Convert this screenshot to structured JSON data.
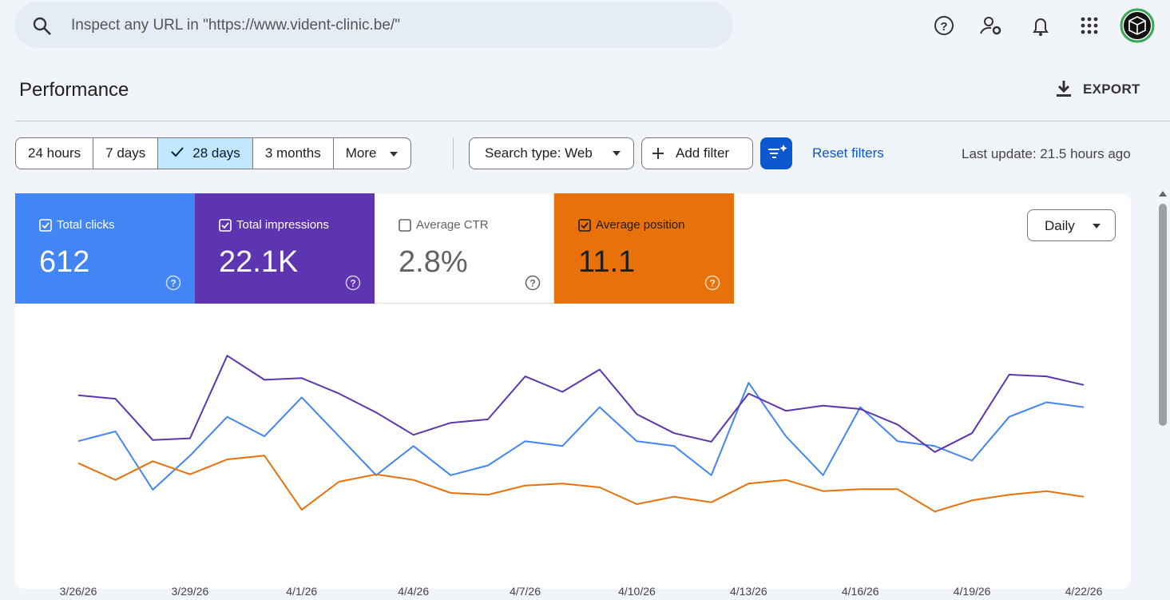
{
  "search": {
    "placeholder": "Inspect any URL in \"https://www.vident-clinic.be/\""
  },
  "header": {
    "title": "Performance",
    "export": "EXPORT"
  },
  "filters": {
    "ranges": [
      "24 hours",
      "7 days",
      "28 days",
      "3 months",
      "More"
    ],
    "selected": 2,
    "search_type": "Search type: Web",
    "add_filter": "Add filter",
    "reset": "Reset filters",
    "last_update": "Last update: 21.5 hours ago"
  },
  "metrics": [
    {
      "label": "Total clicks",
      "value": "612",
      "checked": true,
      "color": "#4285f4"
    },
    {
      "label": "Total impressions",
      "value": "22.1K",
      "checked": true,
      "color": "#5e35b1"
    },
    {
      "label": "Average CTR",
      "value": "2.8%",
      "checked": false,
      "color": "#ffffff"
    },
    {
      "label": "Average position",
      "value": "11.1",
      "checked": true,
      "color": "#e8710a"
    }
  ],
  "granularity": "Daily",
  "chart_data": {
    "type": "line",
    "categories": [
      "3/26/26",
      null,
      null,
      "3/29/26",
      null,
      null,
      "4/1/26",
      null,
      null,
      "4/4/26",
      null,
      null,
      "4/7/26",
      null,
      null,
      "4/10/26",
      null,
      null,
      "4/13/26",
      null,
      null,
      "4/16/26",
      null,
      null,
      "4/19/26",
      null,
      null,
      "4/22/26"
    ],
    "series": [
      {
        "color": "#4285f4",
        "ylim": [
          0,
          46
        ],
        "values": [
          21,
          23,
          11,
          18,
          26,
          22,
          30,
          22,
          14,
          20,
          14,
          16,
          21,
          20,
          28,
          21,
          20,
          14,
          33,
          22,
          14,
          28,
          21,
          20,
          17,
          26,
          29,
          28
        ]
      },
      {
        "color": "#5e35b1",
        "ylim": [
          0,
          1300
        ],
        "values": [
          860,
          840,
          600,
          610,
          1090,
          950,
          960,
          870,
          760,
          630,
          700,
          720,
          970,
          880,
          1010,
          750,
          640,
          590,
          870,
          770,
          800,
          780,
          690,
          530,
          640,
          980,
          970,
          920
        ]
      },
      {
        "color": "#e8710a",
        "ylim": [
          2,
          14
        ],
        "reversed": true,
        "values": [
          9.7,
          10.6,
          9.6,
          10.3,
          9.5,
          9.3,
          12.2,
          10.7,
          10.3,
          10.6,
          11.3,
          11.4,
          10.9,
          10.8,
          11.0,
          11.9,
          11.5,
          11.8,
          10.8,
          10.6,
          11.2,
          11.1,
          11.1,
          12.3,
          11.7,
          11.4,
          11.2,
          11.5
        ]
      }
    ]
  }
}
